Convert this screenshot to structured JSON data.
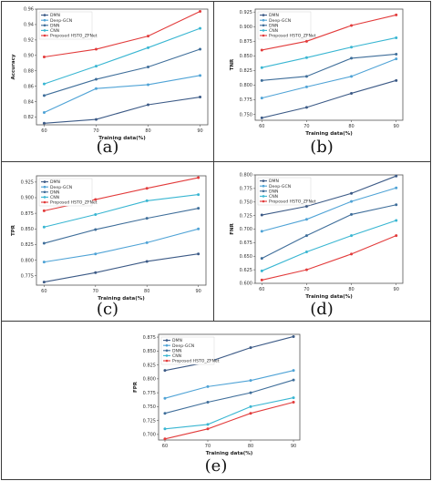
{
  "colors": {
    "DMN": "#3c5a86",
    "Deep-GCN": "#4fa3d6",
    "DNN": "#3f6e9a",
    "CNN": "#39b6d2",
    "Proposed HSTO_ZFNet": "#e23b3b"
  },
  "chart_data": [
    {
      "panel": "a",
      "caption": "(a)",
      "type": "line",
      "xlabel": "Training data(%)",
      "ylabel": "Accuracy",
      "x": [
        60,
        70,
        80,
        90
      ],
      "xticks": [
        "60",
        "70",
        "80",
        "90"
      ],
      "ylim": [
        0.81,
        0.96
      ],
      "yticks": [
        0.82,
        0.84,
        0.86,
        0.88,
        0.9,
        0.92,
        0.94,
        0.96
      ],
      "ytick_labels": [
        "0.82",
        "0.84",
        "0.86",
        "0.88",
        "0.90",
        "0.92",
        "0.94",
        "0.96"
      ],
      "legend_position": "top-left",
      "series": [
        {
          "name": "DMN",
          "values": [
            0.812,
            0.817,
            0.836,
            0.846
          ]
        },
        {
          "name": "Deep-GCN",
          "values": [
            0.826,
            0.857,
            0.862,
            0.874
          ]
        },
        {
          "name": "DNN",
          "values": [
            0.848,
            0.869,
            0.885,
            0.908
          ]
        },
        {
          "name": "CNN",
          "values": [
            0.863,
            0.886,
            0.91,
            0.935
          ]
        },
        {
          "name": "Proposed HSTO_ZFNet",
          "values": [
            0.898,
            0.908,
            0.925,
            0.957
          ]
        }
      ]
    },
    {
      "panel": "b",
      "caption": "(b)",
      "type": "line",
      "xlabel": "Training data(%)",
      "ylabel": "TNR",
      "x": [
        60,
        70,
        80,
        90
      ],
      "xticks": [
        "60",
        "70",
        "80",
        "90"
      ],
      "ylim": [
        0.74,
        0.93
      ],
      "yticks": [
        0.75,
        0.775,
        0.8,
        0.825,
        0.85,
        0.875,
        0.9,
        0.925
      ],
      "ytick_labels": [
        "0.750",
        "0.775",
        "0.800",
        "0.825",
        "0.850",
        "0.875",
        "0.900",
        "0.925"
      ],
      "legend_position": "top-left",
      "series": [
        {
          "name": "DMN",
          "values": [
            0.744,
            0.762,
            0.786,
            0.808
          ]
        },
        {
          "name": "Deep-GCN",
          "values": [
            0.778,
            0.797,
            0.815,
            0.845
          ]
        },
        {
          "name": "DNN",
          "values": [
            0.808,
            0.815,
            0.846,
            0.853
          ]
        },
        {
          "name": "CNN",
          "values": [
            0.83,
            0.847,
            0.865,
            0.881
          ]
        },
        {
          "name": "Proposed HSTO_ZFNet",
          "values": [
            0.86,
            0.875,
            0.902,
            0.92
          ]
        }
      ]
    },
    {
      "panel": "c",
      "caption": "(c)",
      "type": "line",
      "xlabel": "Training data(%)",
      "ylabel": "TPR",
      "x": [
        60,
        70,
        80,
        90
      ],
      "xticks": [
        "60",
        "70",
        "80",
        "90"
      ],
      "ylim": [
        0.76,
        0.935
      ],
      "yticks": [
        0.775,
        0.8,
        0.825,
        0.85,
        0.875,
        0.9,
        0.925
      ],
      "ytick_labels": [
        "0.775",
        "0.800",
        "0.825",
        "0.850",
        "0.875",
        "0.900",
        "0.925"
      ],
      "legend_position": "top-left",
      "series": [
        {
          "name": "DMN",
          "values": [
            0.765,
            0.78,
            0.798,
            0.81
          ]
        },
        {
          "name": "Deep-GCN",
          "values": [
            0.797,
            0.81,
            0.828,
            0.85
          ]
        },
        {
          "name": "DNN",
          "values": [
            0.827,
            0.849,
            0.867,
            0.883
          ]
        },
        {
          "name": "CNN",
          "values": [
            0.853,
            0.873,
            0.895,
            0.905
          ]
        },
        {
          "name": "Proposed HSTO_ZFNet",
          "values": [
            0.879,
            0.897,
            0.915,
            0.932
          ]
        }
      ]
    },
    {
      "panel": "d",
      "caption": "(d)",
      "type": "line",
      "xlabel": "Training data(%)",
      "ylabel": "FNR",
      "x": [
        60,
        70,
        80,
        90
      ],
      "xticks": [
        "60",
        "70",
        "80",
        "90"
      ],
      "ylim": [
        0.6,
        0.8
      ],
      "yticks": [
        0.6,
        0.625,
        0.65,
        0.675,
        0.7,
        0.725,
        0.75,
        0.775,
        0.8
      ],
      "ytick_labels": [
        "0.600",
        "0.625",
        "0.650",
        "0.675",
        "0.700",
        "0.725",
        "0.750",
        "0.775",
        "0.800"
      ],
      "legend_position": "top-left",
      "series": [
        {
          "name": "DMN",
          "values": [
            0.726,
            0.742,
            0.766,
            0.798
          ]
        },
        {
          "name": "Deep-GCN",
          "values": [
            0.696,
            0.718,
            0.751,
            0.776
          ]
        },
        {
          "name": "DNN",
          "values": [
            0.646,
            0.688,
            0.727,
            0.745
          ]
        },
        {
          "name": "CNN",
          "values": [
            0.623,
            0.658,
            0.688,
            0.716
          ]
        },
        {
          "name": "Proposed HSTO_ZFNet",
          "values": [
            0.606,
            0.625,
            0.654,
            0.688
          ]
        }
      ]
    },
    {
      "panel": "e",
      "caption": "(e)",
      "type": "line",
      "xlabel": "Training data(%)",
      "ylabel": "FPR",
      "x": [
        60,
        70,
        80,
        90
      ],
      "xticks": [
        "60",
        "70",
        "80",
        "90"
      ],
      "ylim": [
        0.69,
        0.88
      ],
      "yticks": [
        0.7,
        0.725,
        0.75,
        0.775,
        0.8,
        0.825,
        0.85,
        0.875
      ],
      "ytick_labels": [
        "0.700",
        "0.725",
        "0.750",
        "0.775",
        "0.800",
        "0.825",
        "0.850",
        "0.875"
      ],
      "legend_position": "top-left",
      "series": [
        {
          "name": "DMN",
          "values": [
            0.815,
            0.83,
            0.856,
            0.876
          ]
        },
        {
          "name": "Deep-GCN",
          "values": [
            0.765,
            0.786,
            0.797,
            0.815
          ]
        },
        {
          "name": "DNN",
          "values": [
            0.738,
            0.758,
            0.775,
            0.798
          ]
        },
        {
          "name": "CNN",
          "values": [
            0.71,
            0.718,
            0.75,
            0.766
          ]
        },
        {
          "name": "Proposed HSTO_ZFNet",
          "values": [
            0.692,
            0.71,
            0.738,
            0.758
          ]
        }
      ]
    }
  ]
}
